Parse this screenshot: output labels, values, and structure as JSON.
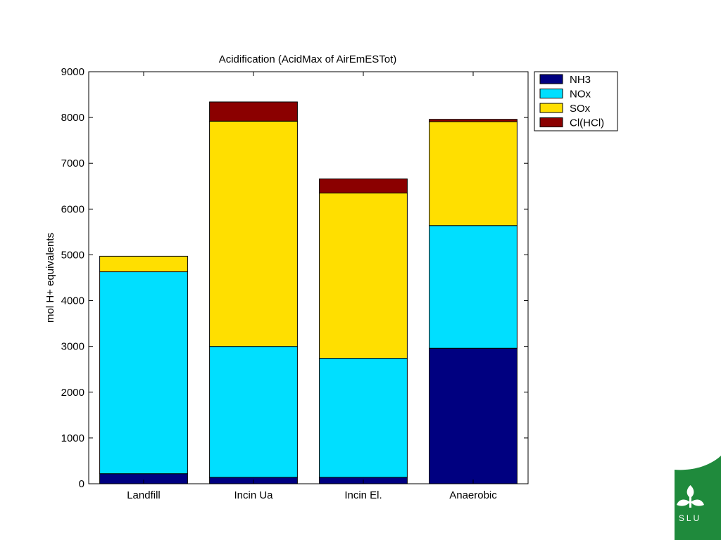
{
  "chart_data": {
    "type": "bar",
    "stacked": true,
    "title": "Acidification (AcidMax of AirEmESTot)",
    "xlabel": "",
    "ylabel": "mol H+ equivalents",
    "ylim": [
      0,
      9000
    ],
    "yticks": [
      "0",
      "1000",
      "2000",
      "3000",
      "4000",
      "5000",
      "6000",
      "7000",
      "8000",
      "9000"
    ],
    "categories": [
      "Landfill",
      "Incin Ua",
      "Incin El.",
      "Anaerobic"
    ],
    "series": [
      {
        "name": "NH3",
        "color": "#000080",
        "values": [
          220,
          140,
          140,
          2960
        ]
      },
      {
        "name": "NOx",
        "color": "#00dfff",
        "values": [
          4410,
          2860,
          2600,
          2680
        ]
      },
      {
        "name": "SOx",
        "color": "#ffdf00",
        "values": [
          340,
          4920,
          3610,
          2270
        ]
      },
      {
        "name": "Cl(HCl)",
        "color": "#8b0000",
        "values": [
          0,
          420,
          310,
          50
        ]
      }
    ],
    "legend": "outside-top-right",
    "grid": false
  },
  "logo": {
    "text": "SLU",
    "color": "#1f8a3c"
  }
}
